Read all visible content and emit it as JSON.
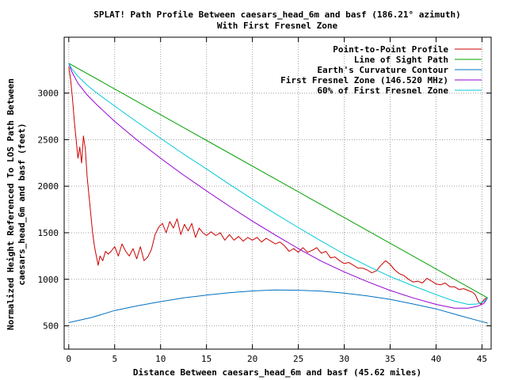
{
  "chart_data": {
    "type": "line",
    "title_line1": "SPLAT! Path Profile Between caesars_head_6m and basf (186.21° azimuth)",
    "title_line2": "With First Fresnel Zone",
    "xlabel": "Distance Between caesars_head_6m and basf (45.62 miles)",
    "ylabel_line1": "Normalized Height Referenced To LOS Path Between",
    "ylabel_line2": "caesars_head_6m and basf (feet)",
    "xlim": [
      -0.5,
      46
    ],
    "ylim": [
      250,
      3600
    ],
    "x_ticks": [
      0,
      5,
      10,
      15,
      20,
      25,
      30,
      35,
      40,
      45
    ],
    "y_ticks": [
      500,
      1000,
      1500,
      2000,
      2500,
      3000
    ],
    "grid": true,
    "legend_position": "top-right",
    "series": [
      {
        "name": "Point-to-Point Profile",
        "color": "#cc0000",
        "x": [
          0,
          0.2,
          0.4,
          0.6,
          0.8,
          1.0,
          1.2,
          1.4,
          1.6,
          1.8,
          2.0,
          2.2,
          2.4,
          2.6,
          2.8,
          3.0,
          3.2,
          3.4,
          3.7,
          4.0,
          4.3,
          4.6,
          5.0,
          5.4,
          5.8,
          6.2,
          6.6,
          7.0,
          7.4,
          7.8,
          8.2,
          8.6,
          9.0,
          9.4,
          9.8,
          10.2,
          10.6,
          11.0,
          11.4,
          11.8,
          12.2,
          12.6,
          13.0,
          13.4,
          13.8,
          14.2,
          14.6,
          15.0,
          15.5,
          16.0,
          16.5,
          17.0,
          17.5,
          18.0,
          18.5,
          19.0,
          19.5,
          20.0,
          20.5,
          21.0,
          21.5,
          22.0,
          22.5,
          23.0,
          23.5,
          24.0,
          24.5,
          25.0,
          25.5,
          26.0,
          26.5,
          27.0,
          27.5,
          28.0,
          28.5,
          29.0,
          29.5,
          30.0,
          30.5,
          31.0,
          31.5,
          32.0,
          32.5,
          33.0,
          33.5,
          34.0,
          34.5,
          35.0,
          35.5,
          36.0,
          36.5,
          37.0,
          37.5,
          38.0,
          38.5,
          39.0,
          39.5,
          40.0,
          40.5,
          41.0,
          41.5,
          42.0,
          42.5,
          43.0,
          43.5,
          44.0,
          44.3,
          44.6,
          44.9,
          45.2,
          45.5
        ],
        "values": [
          3280,
          3150,
          2950,
          2700,
          2500,
          2300,
          2420,
          2250,
          2540,
          2400,
          2100,
          1900,
          1700,
          1500,
          1350,
          1250,
          1150,
          1250,
          1200,
          1300,
          1270,
          1300,
          1350,
          1250,
          1380,
          1300,
          1250,
          1330,
          1220,
          1350,
          1200,
          1240,
          1320,
          1480,
          1560,
          1600,
          1500,
          1620,
          1550,
          1650,
          1480,
          1590,
          1520,
          1600,
          1450,
          1550,
          1500,
          1470,
          1510,
          1470,
          1500,
          1420,
          1480,
          1420,
          1460,
          1410,
          1450,
          1420,
          1450,
          1400,
          1440,
          1410,
          1380,
          1400,
          1360,
          1300,
          1330,
          1290,
          1340,
          1290,
          1310,
          1340,
          1280,
          1300,
          1230,
          1240,
          1200,
          1170,
          1180,
          1150,
          1120,
          1120,
          1100,
          1070,
          1090,
          1150,
          1200,
          1160,
          1100,
          1060,
          1040,
          1000,
          970,
          980,
          960,
          1010,
          980,
          950,
          940,
          960,
          920,
          920,
          890,
          900,
          880,
          860,
          830,
          760,
          730,
          780,
          800
        ]
      },
      {
        "name": "Line of Sight Path",
        "color": "#00a000",
        "x": [
          0,
          45.62
        ],
        "values": [
          3320,
          800
        ]
      },
      {
        "name": "Earth's Curvature Contour",
        "color": "#0070c0",
        "x": [
          0,
          2.5,
          5,
          7.5,
          10,
          12.5,
          15,
          17.5,
          20,
          22.5,
          25,
          27.5,
          30,
          32.5,
          35,
          37.5,
          40,
          42.5,
          45,
          45.62
        ],
        "values": [
          535,
          590,
          665,
          715,
          760,
          800,
          830,
          855,
          875,
          885,
          883,
          872,
          852,
          822,
          785,
          735,
          682,
          612,
          545,
          530
        ]
      },
      {
        "name": "First Fresnel Zone (146.520 MHz)",
        "color": "#9400d3",
        "x": [
          0,
          0.3,
          1,
          2,
          3,
          5,
          7.5,
          10,
          12.5,
          15,
          17.5,
          20,
          22.5,
          25,
          27.5,
          30,
          32.5,
          35,
          37.5,
          40,
          42,
          43.5,
          44.5,
          45.2,
          45.62
        ],
        "values": [
          3320,
          3235,
          3105,
          2980,
          2880,
          2695,
          2490,
          2300,
          2120,
          1950,
          1785,
          1625,
          1475,
          1330,
          1195,
          1080,
          975,
          880,
          800,
          730,
          690,
          690,
          710,
          740,
          800
        ]
      },
      {
        "name": "60% of First Fresnel Zone",
        "color": "#00c8d8",
        "x": [
          0,
          0.3,
          1,
          2,
          3,
          5,
          7.5,
          10,
          12.5,
          15,
          17.5,
          20,
          22.5,
          25,
          27.5,
          30,
          32.5,
          35,
          37.5,
          40,
          42,
          43.5,
          44.5,
          45.2,
          45.62
        ],
        "values": [
          3320,
          3265,
          3180,
          3085,
          3005,
          2860,
          2685,
          2515,
          2345,
          2185,
          2020,
          1860,
          1705,
          1555,
          1410,
          1270,
          1145,
          1030,
          930,
          835,
          765,
          730,
          735,
          760,
          800
        ]
      }
    ]
  }
}
